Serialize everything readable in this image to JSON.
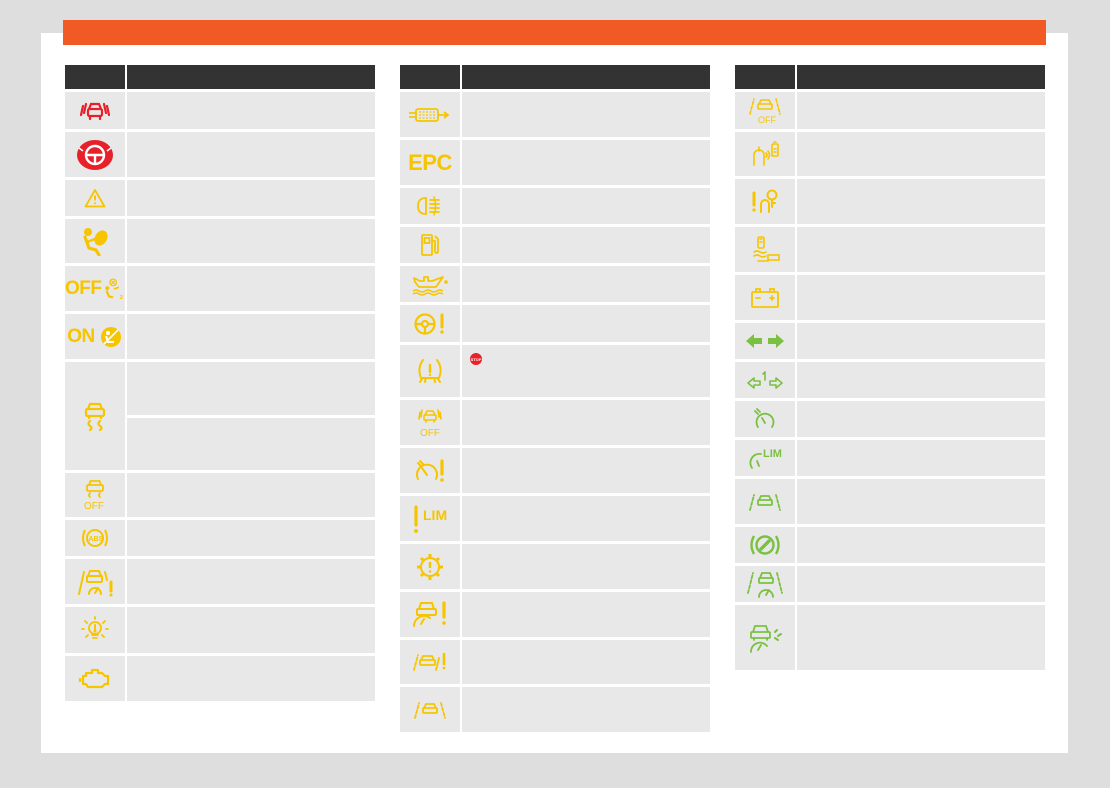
{
  "colors": {
    "header_bar": "#f15a24",
    "table_header": "#333333",
    "cell_bg": "#e8e8e8",
    "red": "#e8202a",
    "yellow": "#f6c500",
    "green": "#7ac142"
  },
  "column1": [
    {
      "icon": "collision-warning-icon",
      "color": "red"
    },
    {
      "icon": "steering-lock-icon",
      "color": "red"
    },
    {
      "icon": "warning-triangle-icon",
      "color": "yellow"
    },
    {
      "icon": "airbag-icon",
      "color": "yellow"
    },
    {
      "icon": "passenger-airbag-off-icon",
      "color": "yellow",
      "label": "OFF"
    },
    {
      "icon": "passenger-airbag-on-icon",
      "color": "yellow",
      "label": "ON"
    },
    {
      "icon": "stability-control-icon",
      "color": "yellow",
      "split": true
    },
    {
      "icon": "stability-control-off-icon",
      "color": "yellow",
      "label": "OFF"
    },
    {
      "icon": "abs-icon",
      "color": "yellow",
      "label": "ABS"
    },
    {
      "icon": "lane-assist-warning-icon",
      "color": "yellow"
    },
    {
      "icon": "light-bulb-warning-icon",
      "color": "yellow"
    },
    {
      "icon": "engine-check-icon",
      "color": "yellow"
    }
  ],
  "column2": [
    {
      "icon": "diesel-filter-icon",
      "color": "yellow"
    },
    {
      "icon": "epc-icon",
      "color": "yellow",
      "label": "EPC"
    },
    {
      "icon": "rear-fog-light-icon",
      "color": "yellow"
    },
    {
      "icon": "fuel-icon",
      "color": "yellow"
    },
    {
      "icon": "oil-level-icon",
      "color": "yellow"
    },
    {
      "icon": "steering-warning-icon",
      "color": "yellow"
    },
    {
      "icon": "tyre-pressure-icon",
      "color": "yellow",
      "badge": "STOP"
    },
    {
      "icon": "front-assist-off-icon",
      "color": "yellow",
      "label": "OFF"
    },
    {
      "icon": "speed-warning-icon",
      "color": "yellow"
    },
    {
      "icon": "speed-limiter-warning-icon",
      "color": "yellow",
      "label": "LIM"
    },
    {
      "icon": "gearbox-warning-icon",
      "color": "yellow"
    },
    {
      "icon": "adaptive-cruise-warning-icon",
      "color": "yellow"
    },
    {
      "icon": "lane-warning-icon",
      "color": "yellow"
    },
    {
      "icon": "lane-assist-icon",
      "color": "yellow"
    }
  ],
  "column3": [
    {
      "icon": "lane-assist-off-icon",
      "color": "yellow",
      "label": "OFF"
    },
    {
      "icon": "key-battery-icon",
      "color": "yellow"
    },
    {
      "icon": "key-warning-icon",
      "color": "yellow"
    },
    {
      "icon": "brake-pedal-icon",
      "color": "yellow"
    },
    {
      "icon": "battery-icon",
      "color": "yellow"
    },
    {
      "icon": "turn-signals-icon",
      "color": "green"
    },
    {
      "icon": "trailer-turn-signals-icon",
      "color": "green"
    },
    {
      "icon": "cruise-control-icon",
      "color": "green"
    },
    {
      "icon": "speed-limiter-icon",
      "color": "green",
      "label": "LIM"
    },
    {
      "icon": "lane-assist-active-icon",
      "color": "green"
    },
    {
      "icon": "brake-pedal-press-icon",
      "color": "green"
    },
    {
      "icon": "adaptive-cruise-icon",
      "color": "green"
    },
    {
      "icon": "traffic-jam-assist-icon",
      "color": "green"
    }
  ]
}
